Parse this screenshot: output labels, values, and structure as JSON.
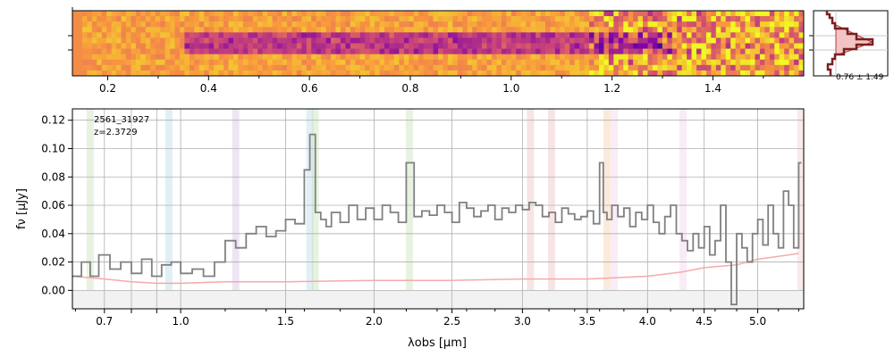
{
  "chart_data": [
    {
      "type": "heatmap",
      "panel": "2d-spectrum",
      "colormap": "plasma",
      "x_ticks": [
        "0.2",
        "0.4",
        "0.6",
        "0.8",
        "1.0",
        "1.2",
        "1.4"
      ],
      "x_tick_values": [
        0.2,
        0.4,
        0.6,
        0.8,
        1.0,
        1.2,
        1.4
      ],
      "xlim": [
        0.13,
        1.58
      ]
    },
    {
      "type": "area",
      "panel": "profile",
      "label": "0.76 ± 1.49",
      "profile_color": "#7a1f1f",
      "fill_color": "#f4c4c4"
    },
    {
      "type": "line",
      "panel": "1d-spectrum",
      "object_id": "2561_31927",
      "redshift_label": "z=2.3729",
      "xlabel": "λobs [μm]",
      "ylabel": "fν [μJy]",
      "x_ticks": [
        "0.7",
        "0.8",
        "0.9",
        "1.0",
        "1.5",
        "2.0",
        "2.5",
        "3.0",
        "3.5",
        "4.0",
        "4.5",
        "5.0"
      ],
      "x_tick_labels": [
        "0.7",
        "",
        "",
        "1.0",
        "1.5",
        "2.0",
        "2.5",
        "3.0",
        "3.5",
        "4.0",
        "4.5",
        "5.0"
      ],
      "x_tick_values": [
        0.7,
        0.8,
        0.9,
        1.0,
        1.5,
        2.0,
        2.5,
        3.0,
        3.5,
        4.0,
        4.5,
        5.0
      ],
      "y_ticks": [
        "0.00",
        "0.02",
        "0.04",
        "0.06",
        "0.08",
        "0.10",
        "0.12"
      ],
      "y_tick_values": [
        0.0,
        0.02,
        0.04,
        0.06,
        0.08,
        0.1,
        0.12
      ],
      "ylim": [
        -0.013,
        0.128
      ],
      "grid": true,
      "series": [
        {
          "role": "flux",
          "color": "#808080",
          "x": [
            0.59,
            0.62,
            0.65,
            0.68,
            0.72,
            0.76,
            0.8,
            0.84,
            0.88,
            0.92,
            0.96,
            1.0,
            1.05,
            1.1,
            1.15,
            1.2,
            1.25,
            1.3,
            1.35,
            1.4,
            1.45,
            1.5,
            1.55,
            1.6,
            1.63,
            1.66,
            1.69,
            1.72,
            1.75,
            1.8,
            1.85,
            1.9,
            1.95,
            2.0,
            2.05,
            2.1,
            2.15,
            2.2,
            2.25,
            2.3,
            2.35,
            2.4,
            2.45,
            2.5,
            2.55,
            2.6,
            2.65,
            2.7,
            2.75,
            2.8,
            2.85,
            2.9,
            2.95,
            3.0,
            3.05,
            3.1,
            3.15,
            3.2,
            3.25,
            3.3,
            3.35,
            3.4,
            3.45,
            3.5,
            3.55,
            3.6,
            3.63,
            3.66,
            3.7,
            3.75,
            3.8,
            3.85,
            3.9,
            3.95,
            4.0,
            4.05,
            4.1,
            4.15,
            4.2,
            4.25,
            4.3,
            4.35,
            4.4,
            4.45,
            4.5,
            4.55,
            4.6,
            4.65,
            4.7,
            4.75,
            4.8,
            4.85,
            4.9,
            4.95,
            5.0,
            5.05,
            5.1,
            5.15,
            5.2,
            5.25,
            5.3,
            5.35,
            5.4
          ],
          "y": [
            0.01,
            0.02,
            0.01,
            0.025,
            0.015,
            0.02,
            0.012,
            0.022,
            0.01,
            0.018,
            0.02,
            0.012,
            0.015,
            0.01,
            0.02,
            0.035,
            0.03,
            0.04,
            0.045,
            0.038,
            0.042,
            0.05,
            0.047,
            0.085,
            0.11,
            0.055,
            0.05,
            0.045,
            0.055,
            0.048,
            0.06,
            0.05,
            0.058,
            0.05,
            0.06,
            0.055,
            0.048,
            0.09,
            0.052,
            0.056,
            0.053,
            0.06,
            0.055,
            0.048,
            0.062,
            0.058,
            0.052,
            0.056,
            0.06,
            0.05,
            0.058,
            0.055,
            0.06,
            0.057,
            0.062,
            0.06,
            0.052,
            0.055,
            0.048,
            0.058,
            0.054,
            0.05,
            0.052,
            0.056,
            0.047,
            0.09,
            0.055,
            0.05,
            0.06,
            0.052,
            0.058,
            0.045,
            0.055,
            0.05,
            0.06,
            0.048,
            0.04,
            0.052,
            0.06,
            0.04,
            0.035,
            0.028,
            0.04,
            0.03,
            0.045,
            0.025,
            0.035,
            0.06,
            0.02,
            -0.01,
            0.04,
            0.03,
            0.02,
            0.04,
            0.05,
            0.032,
            0.06,
            0.04,
            0.03,
            0.07,
            0.06,
            0.03,
            0.09
          ]
        },
        {
          "role": "error",
          "color": "#f4aaaa",
          "x": [
            0.59,
            0.7,
            0.8,
            0.9,
            1.0,
            1.2,
            1.5,
            2.0,
            2.5,
            3.0,
            3.5,
            4.0,
            4.3,
            4.5,
            4.8,
            5.0,
            5.2,
            5.4
          ],
          "y": [
            0.01,
            0.008,
            0.006,
            0.005,
            0.005,
            0.006,
            0.006,
            0.007,
            0.007,
            0.008,
            0.008,
            0.01,
            0.013,
            0.016,
            0.018,
            0.022,
            0.024,
            0.026
          ]
        }
      ],
      "line_markers": [
        {
          "x": 0.65,
          "color": "#bcd9a8"
        },
        {
          "x": 0.95,
          "color": "#a8d0e8"
        },
        {
          "x": 1.25,
          "color": "#c8b4e0"
        },
        {
          "x": 1.63,
          "color": "#a8d0e8"
        },
        {
          "x": 1.66,
          "color": "#bcd9a8"
        },
        {
          "x": 2.22,
          "color": "#bcd9a8"
        },
        {
          "x": 3.06,
          "color": "#e8b4b4"
        },
        {
          "x": 3.22,
          "color": "#e8b4b4"
        },
        {
          "x": 3.66,
          "color": "#f4c49c"
        },
        {
          "x": 3.72,
          "color": "#f0c8e8"
        },
        {
          "x": 4.31,
          "color": "#f0c8e8"
        },
        {
          "x": 5.42,
          "color": "#f4c4c4"
        }
      ]
    }
  ]
}
